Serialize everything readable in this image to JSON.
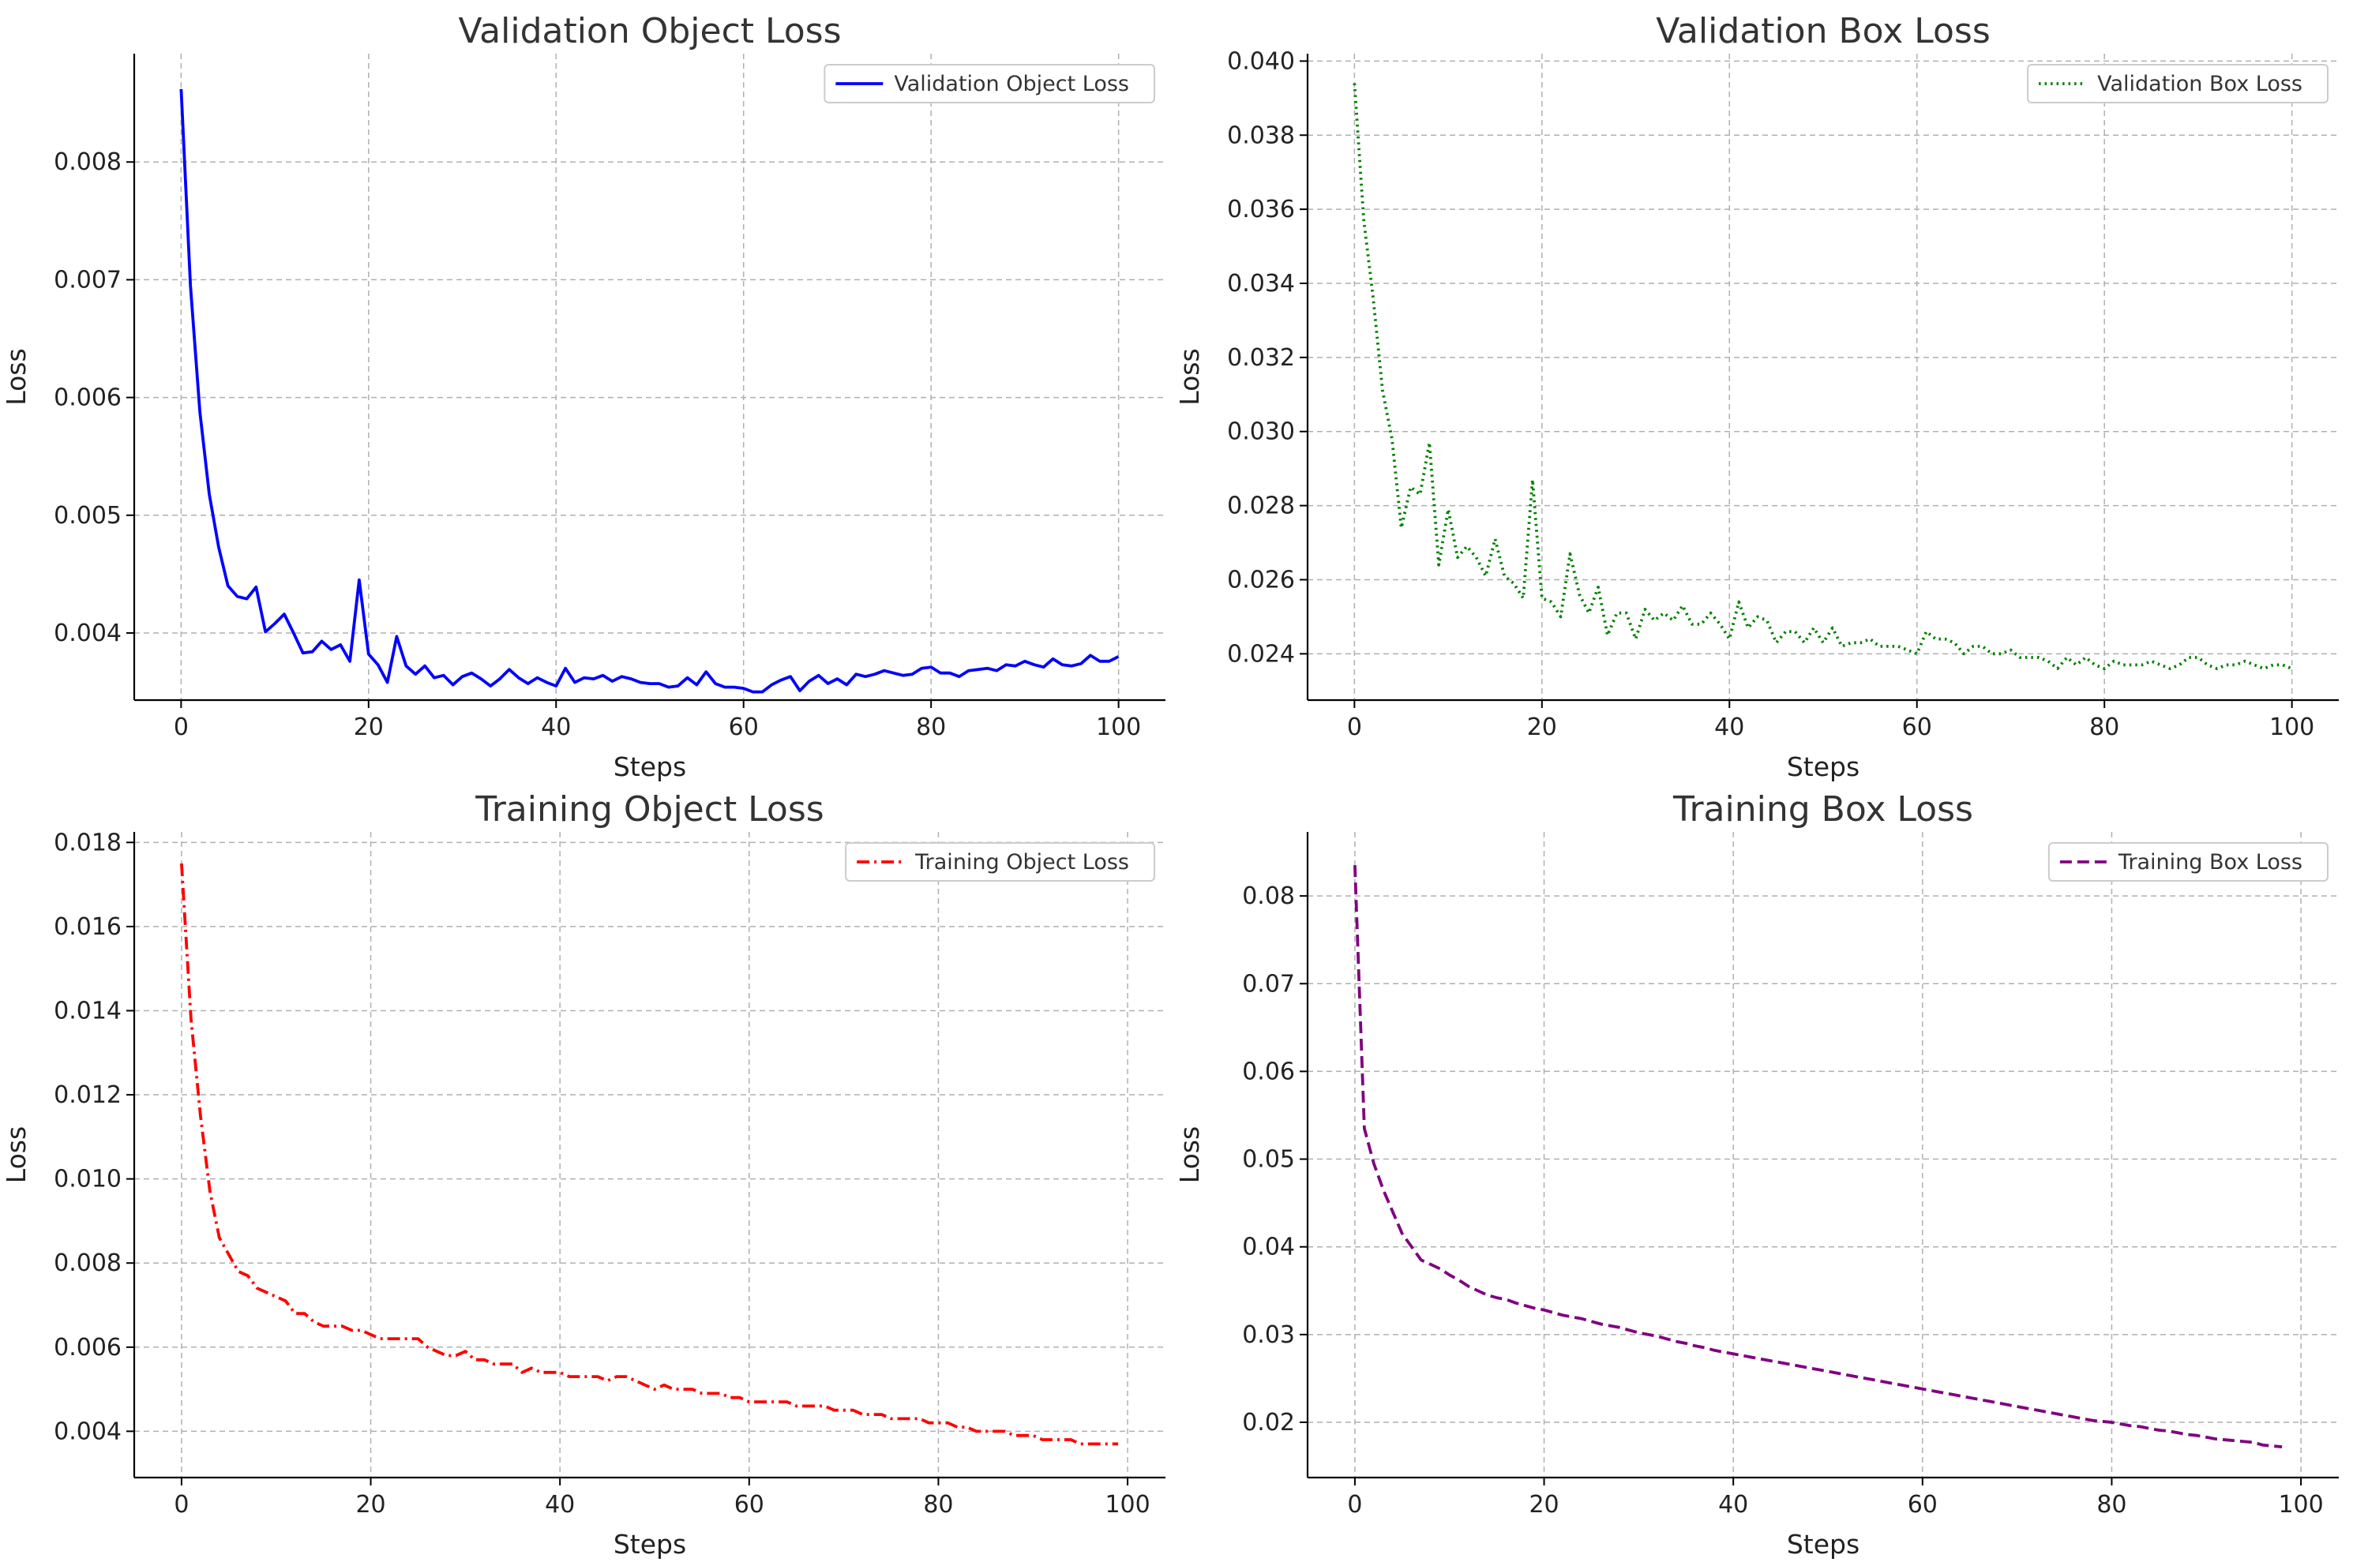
{
  "chart_data": [
    {
      "type": "line",
      "title": "Validation Object Loss",
      "xlabel": "Steps",
      "ylabel": "Loss",
      "xlim": [
        -5,
        105
      ],
      "ylim": [
        0.00343,
        0.00892
      ],
      "xticks": [
        0,
        20,
        40,
        60,
        80,
        100
      ],
      "yticks": [
        0.004,
        0.005,
        0.006,
        0.007,
        0.008
      ],
      "ytick_labels": [
        "0.004",
        "0.005",
        "0.006",
        "0.007",
        "0.008"
      ],
      "grid": true,
      "legend_position": "top-right",
      "series": [
        {
          "name": "Validation Object Loss",
          "color": "#0000ff",
          "linestyle": "solid",
          "x": [
            0,
            1,
            2,
            3,
            4,
            5,
            6,
            7,
            8,
            9,
            10,
            11,
            12,
            13,
            14,
            15,
            16,
            17,
            18,
            19,
            20,
            21,
            22,
            23,
            24,
            25,
            26,
            27,
            28,
            29,
            30,
            31,
            32,
            33,
            34,
            35,
            36,
            37,
            38,
            39,
            40,
            41,
            42,
            43,
            44,
            45,
            46,
            47,
            48,
            49,
            50,
            51,
            52,
            53,
            54,
            55,
            56,
            57,
            58,
            59,
            60,
            61,
            62,
            63,
            64,
            65,
            66,
            67,
            68,
            69,
            70,
            71,
            72,
            73,
            74,
            75,
            76,
            77,
            78,
            79,
            80,
            81,
            82,
            83,
            84,
            85,
            86,
            87,
            88,
            89,
            90,
            91,
            92,
            93,
            94,
            95,
            96,
            97,
            98,
            99,
            100
          ],
          "y": [
            0.00862,
            0.00695,
            0.00588,
            0.00518,
            0.00473,
            0.0044,
            0.00431,
            0.00429,
            0.00439,
            0.00401,
            0.00408,
            0.00416,
            0.004,
            0.00383,
            0.00384,
            0.00393,
            0.00386,
            0.0039,
            0.00376,
            0.00445,
            0.00382,
            0.00373,
            0.00358,
            0.00397,
            0.00372,
            0.00365,
            0.00372,
            0.00362,
            0.00364,
            0.00356,
            0.00363,
            0.00366,
            0.00361,
            0.00355,
            0.00361,
            0.00369,
            0.00362,
            0.00357,
            0.00362,
            0.00358,
            0.00355,
            0.0037,
            0.00358,
            0.00362,
            0.00361,
            0.00364,
            0.00359,
            0.00363,
            0.00361,
            0.00358,
            0.00357,
            0.00357,
            0.00354,
            0.00355,
            0.00362,
            0.00356,
            0.00367,
            0.00357,
            0.00354,
            0.00354,
            0.00353,
            0.0035,
            0.0035,
            0.00356,
            0.0036,
            0.00363,
            0.00351,
            0.00359,
            0.00364,
            0.00357,
            0.00361,
            0.00356,
            0.00365,
            0.00363,
            0.00365,
            0.00368,
            0.00366,
            0.00364,
            0.00365,
            0.0037,
            0.00371,
            0.00366,
            0.00366,
            0.00363,
            0.00368,
            0.00369,
            0.0037,
            0.00368,
            0.00373,
            0.00372,
            0.00376,
            0.00373,
            0.00371,
            0.00378,
            0.00373,
            0.00372,
            0.00374,
            0.00381,
            0.00376,
            0.00376,
            0.0038
          ]
        }
      ]
    },
    {
      "type": "line",
      "title": "Validation Box Loss",
      "xlabel": "Steps",
      "ylabel": "Loss",
      "xlim": [
        -5,
        105
      ],
      "ylim": [
        0.02275,
        0.0402
      ],
      "xticks": [
        0,
        20,
        40,
        60,
        80,
        100
      ],
      "yticks": [
        0.024,
        0.026,
        0.028,
        0.03,
        0.032,
        0.034,
        0.036,
        0.038,
        0.04
      ],
      "ytick_labels": [
        "0.024",
        "0.026",
        "0.028",
        "0.030",
        "0.032",
        "0.034",
        "0.036",
        "0.038",
        "0.040"
      ],
      "grid": true,
      "legend_position": "top-right",
      "series": [
        {
          "name": "Validation Box Loss",
          "color": "#008000",
          "linestyle": "dotted",
          "x": [
            0,
            1,
            2,
            3,
            4,
            5,
            6,
            7,
            8,
            9,
            10,
            11,
            12,
            13,
            14,
            15,
            16,
            17,
            18,
            19,
            20,
            21,
            22,
            23,
            24,
            25,
            26,
            27,
            28,
            29,
            30,
            31,
            32,
            33,
            34,
            35,
            36,
            37,
            38,
            39,
            40,
            41,
            42,
            43,
            44,
            45,
            46,
            47,
            48,
            49,
            50,
            51,
            52,
            53,
            54,
            55,
            56,
            57,
            58,
            59,
            60,
            61,
            62,
            63,
            64,
            65,
            66,
            67,
            68,
            69,
            70,
            71,
            72,
            73,
            74,
            75,
            76,
            77,
            78,
            79,
            80,
            81,
            82,
            83,
            84,
            85,
            86,
            87,
            88,
            89,
            90,
            91,
            92,
            93,
            94,
            95,
            96,
            97,
            98,
            99,
            100
          ],
          "y": [
            0.0394,
            0.0357,
            0.0336,
            0.0311,
            0.0298,
            0.0274,
            0.0285,
            0.0283,
            0.0297,
            0.0264,
            0.0279,
            0.0266,
            0.0269,
            0.0266,
            0.0261,
            0.0271,
            0.0261,
            0.0259,
            0.0255,
            0.0287,
            0.0255,
            0.0254,
            0.025,
            0.0267,
            0.0256,
            0.0251,
            0.0258,
            0.0245,
            0.0251,
            0.0251,
            0.0244,
            0.0252,
            0.0249,
            0.0251,
            0.0249,
            0.0253,
            0.0248,
            0.0248,
            0.0251,
            0.0248,
            0.0244,
            0.0254,
            0.0247,
            0.025,
            0.0249,
            0.0243,
            0.0246,
            0.0246,
            0.0243,
            0.0247,
            0.0243,
            0.0247,
            0.0242,
            0.0243,
            0.0243,
            0.0244,
            0.0242,
            0.0242,
            0.0242,
            0.0241,
            0.024,
            0.0246,
            0.0244,
            0.0244,
            0.0243,
            0.024,
            0.0242,
            0.0242,
            0.024,
            0.024,
            0.0241,
            0.0239,
            0.0239,
            0.0239,
            0.0238,
            0.0236,
            0.0239,
            0.0237,
            0.0239,
            0.0237,
            0.0236,
            0.0238,
            0.0237,
            0.0237,
            0.0237,
            0.0238,
            0.0237,
            0.0236,
            0.0237,
            0.0239,
            0.0239,
            0.0237,
            0.0236,
            0.0237,
            0.0237,
            0.0238,
            0.0237,
            0.0236,
            0.0237,
            0.0237,
            0.0236
          ]
        }
      ]
    },
    {
      "type": "line",
      "title": "Training Object Loss",
      "xlabel": "Steps",
      "ylabel": "Loss",
      "xlim": [
        -5,
        104
      ],
      "ylim": [
        0.0029,
        0.01825
      ],
      "xticks": [
        0,
        20,
        40,
        60,
        80,
        100
      ],
      "yticks": [
        0.004,
        0.006,
        0.008,
        0.01,
        0.012,
        0.014,
        0.016,
        0.018
      ],
      "ytick_labels": [
        "0.004",
        "0.006",
        "0.008",
        "0.010",
        "0.012",
        "0.014",
        "0.016",
        "0.018"
      ],
      "grid": true,
      "legend_position": "top-right",
      "series": [
        {
          "name": "Training Object Loss",
          "color": "#ff0000",
          "linestyle": "dashdot",
          "x": [
            0,
            1,
            2,
            3,
            4,
            5,
            6,
            7,
            8,
            9,
            10,
            11,
            12,
            13,
            14,
            15,
            16,
            17,
            18,
            19,
            20,
            21,
            22,
            23,
            24,
            25,
            26,
            27,
            28,
            29,
            30,
            31,
            32,
            33,
            34,
            35,
            36,
            37,
            38,
            39,
            40,
            41,
            42,
            43,
            44,
            45,
            46,
            47,
            48,
            49,
            50,
            51,
            52,
            53,
            54,
            55,
            56,
            57,
            58,
            59,
            60,
            61,
            62,
            63,
            64,
            65,
            66,
            67,
            68,
            69,
            70,
            71,
            72,
            73,
            74,
            75,
            76,
            77,
            78,
            79,
            80,
            81,
            82,
            83,
            84,
            85,
            86,
            87,
            88,
            89,
            90,
            91,
            92,
            93,
            94,
            95,
            96,
            97,
            98,
            99
          ],
          "y": [
            0.0175,
            0.0138,
            0.0115,
            0.0097,
            0.0086,
            0.0082,
            0.0078,
            0.0077,
            0.0074,
            0.0073,
            0.0072,
            0.0071,
            0.0068,
            0.0068,
            0.0066,
            0.0065,
            0.0065,
            0.0065,
            0.0064,
            0.0064,
            0.0063,
            0.0062,
            0.0062,
            0.0062,
            0.0062,
            0.0062,
            0.006,
            0.0059,
            0.0058,
            0.0058,
            0.0059,
            0.0057,
            0.0057,
            0.0056,
            0.0056,
            0.0056,
            0.0054,
            0.0055,
            0.0054,
            0.0054,
            0.0054,
            0.0053,
            0.0053,
            0.0053,
            0.0053,
            0.0052,
            0.0053,
            0.0053,
            0.0052,
            0.0051,
            0.005,
            0.0051,
            0.005,
            0.005,
            0.005,
            0.0049,
            0.0049,
            0.0049,
            0.0048,
            0.0048,
            0.0047,
            0.0047,
            0.0047,
            0.0047,
            0.0047,
            0.0046,
            0.0046,
            0.0046,
            0.0046,
            0.0045,
            0.0045,
            0.0045,
            0.0044,
            0.0044,
            0.0044,
            0.0043,
            0.0043,
            0.0043,
            0.0043,
            0.0042,
            0.0042,
            0.0042,
            0.0041,
            0.0041,
            0.004,
            0.004,
            0.004,
            0.004,
            0.0039,
            0.0039,
            0.0039,
            0.0038,
            0.0038,
            0.0038,
            0.0038,
            0.0037,
            0.0037,
            0.0037,
            0.0037,
            0.0037
          ]
        }
      ]
    },
    {
      "type": "line",
      "title": "Training Box Loss",
      "xlabel": "Steps",
      "ylabel": "Loss",
      "xlim": [
        -5,
        104
      ],
      "ylim": [
        0.0137,
        0.0873
      ],
      "xticks": [
        0,
        20,
        40,
        60,
        80,
        100
      ],
      "yticks": [
        0.02,
        0.03,
        0.04,
        0.05,
        0.06,
        0.07,
        0.08
      ],
      "ytick_labels": [
        "0.02",
        "0.03",
        "0.04",
        "0.05",
        "0.06",
        "0.07",
        "0.08"
      ],
      "grid": true,
      "legend_position": "top-right",
      "series": [
        {
          "name": "Training Box Loss",
          "color": "#800080",
          "linestyle": "dashed",
          "x": [
            0,
            1,
            2,
            3,
            4,
            5,
            6,
            7,
            8,
            9,
            10,
            11,
            12,
            13,
            14,
            15,
            16,
            17,
            18,
            19,
            20,
            21,
            22,
            23,
            24,
            25,
            26,
            27,
            28,
            29,
            30,
            31,
            32,
            33,
            34,
            35,
            36,
            37,
            38,
            39,
            40,
            41,
            42,
            43,
            44,
            45,
            46,
            47,
            48,
            49,
            50,
            51,
            52,
            53,
            54,
            55,
            56,
            57,
            58,
            59,
            60,
            61,
            62,
            63,
            64,
            65,
            66,
            67,
            68,
            69,
            70,
            71,
            72,
            73,
            74,
            75,
            76,
            77,
            78,
            79,
            80,
            81,
            82,
            83,
            84,
            85,
            86,
            87,
            88,
            89,
            90,
            91,
            92,
            93,
            94,
            95,
            96,
            97,
            98
          ],
          "y": [
            0.0835,
            0.0535,
            0.0495,
            0.0465,
            0.044,
            0.0415,
            0.04,
            0.0385,
            0.038,
            0.0375,
            0.0368,
            0.0362,
            0.0355,
            0.035,
            0.0345,
            0.0342,
            0.034,
            0.0336,
            0.0333,
            0.033,
            0.0328,
            0.0325,
            0.0322,
            0.032,
            0.0318,
            0.0315,
            0.0312,
            0.031,
            0.0308,
            0.0305,
            0.0302,
            0.03,
            0.0298,
            0.0295,
            0.0292,
            0.029,
            0.0287,
            0.0285,
            0.0282,
            0.028,
            0.0278,
            0.0276,
            0.0274,
            0.0272,
            0.027,
            0.0268,
            0.0266,
            0.0264,
            0.0262,
            0.026,
            0.0258,
            0.0256,
            0.0254,
            0.0252,
            0.025,
            0.0248,
            0.0246,
            0.0244,
            0.0242,
            0.024,
            0.0238,
            0.0236,
            0.0234,
            0.0232,
            0.023,
            0.0228,
            0.0226,
            0.0224,
            0.0222,
            0.022,
            0.0218,
            0.0216,
            0.0214,
            0.0212,
            0.021,
            0.0208,
            0.0206,
            0.0204,
            0.0202,
            0.0201,
            0.02,
            0.0198,
            0.0196,
            0.0195,
            0.0193,
            0.0191,
            0.019,
            0.0188,
            0.0186,
            0.0185,
            0.0183,
            0.0181,
            0.018,
            0.0179,
            0.0178,
            0.0177,
            0.0174,
            0.0173,
            0.0172
          ]
        }
      ]
    }
  ]
}
